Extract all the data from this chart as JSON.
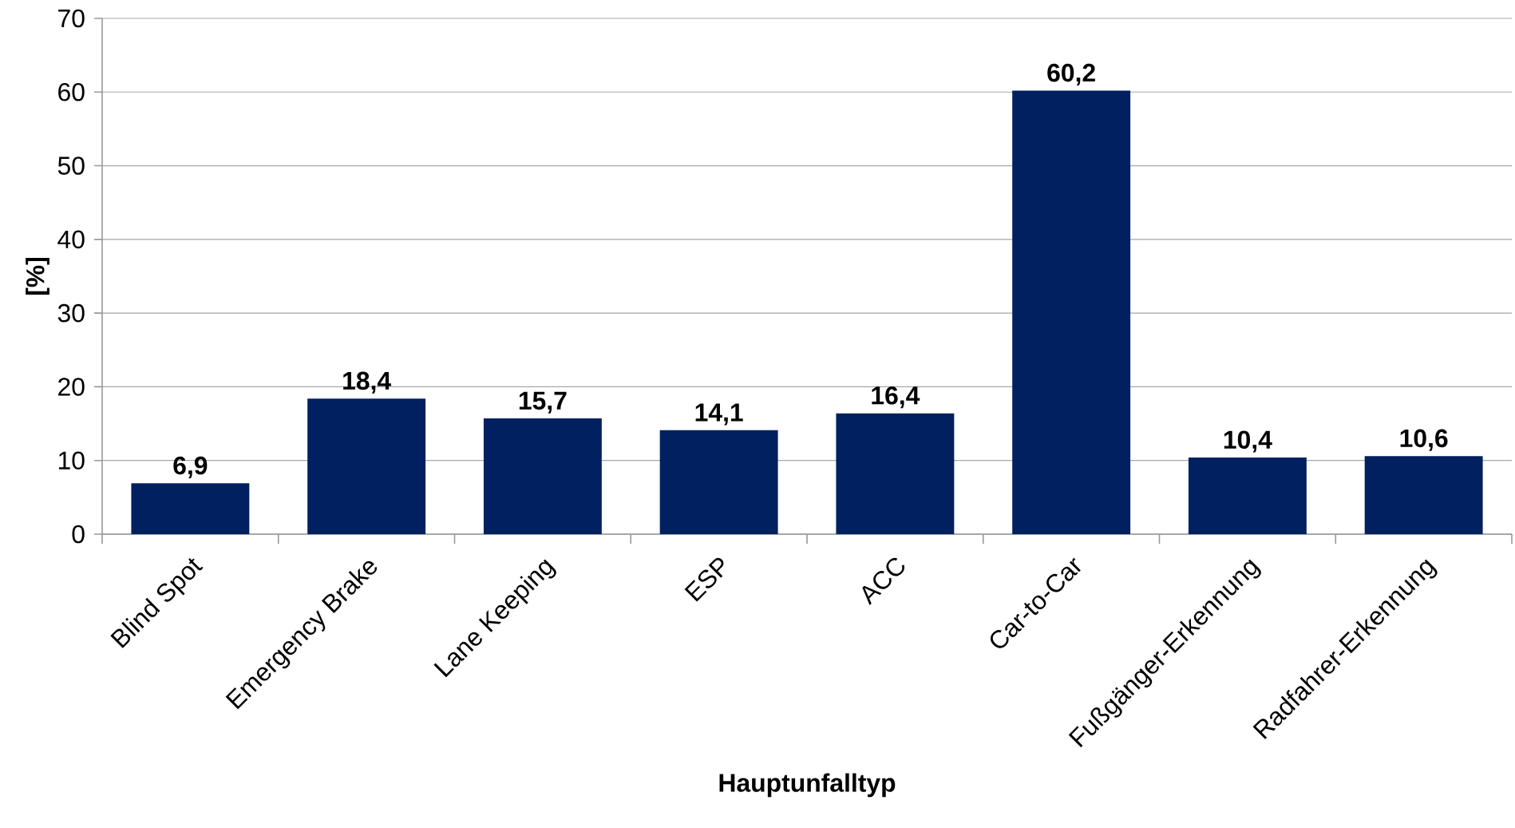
{
  "chart_data": {
    "type": "bar",
    "xlabel": "Hauptunfalltyp",
    "ylabel": "[%]",
    "categories": [
      "Blind Spot",
      "Emergency Brake",
      "Lane Keeping",
      "ESP",
      "ACC",
      "Car-to-Car",
      "Fußgänger-Erkennung",
      "Radfahrer-Erkennung"
    ],
    "values": [
      6.9,
      18.4,
      15.7,
      14.1,
      16.4,
      60.2,
      10.4,
      10.6
    ],
    "value_labels": [
      "6,9",
      "18,4",
      "15,7",
      "14,1",
      "16,4",
      "60,2",
      "10,4",
      "10,6"
    ],
    "color": "#002060",
    "ylim": [
      0,
      70
    ],
    "yticks": [
      0,
      10,
      20,
      30,
      40,
      50,
      60,
      70
    ],
    "grid": "y"
  }
}
